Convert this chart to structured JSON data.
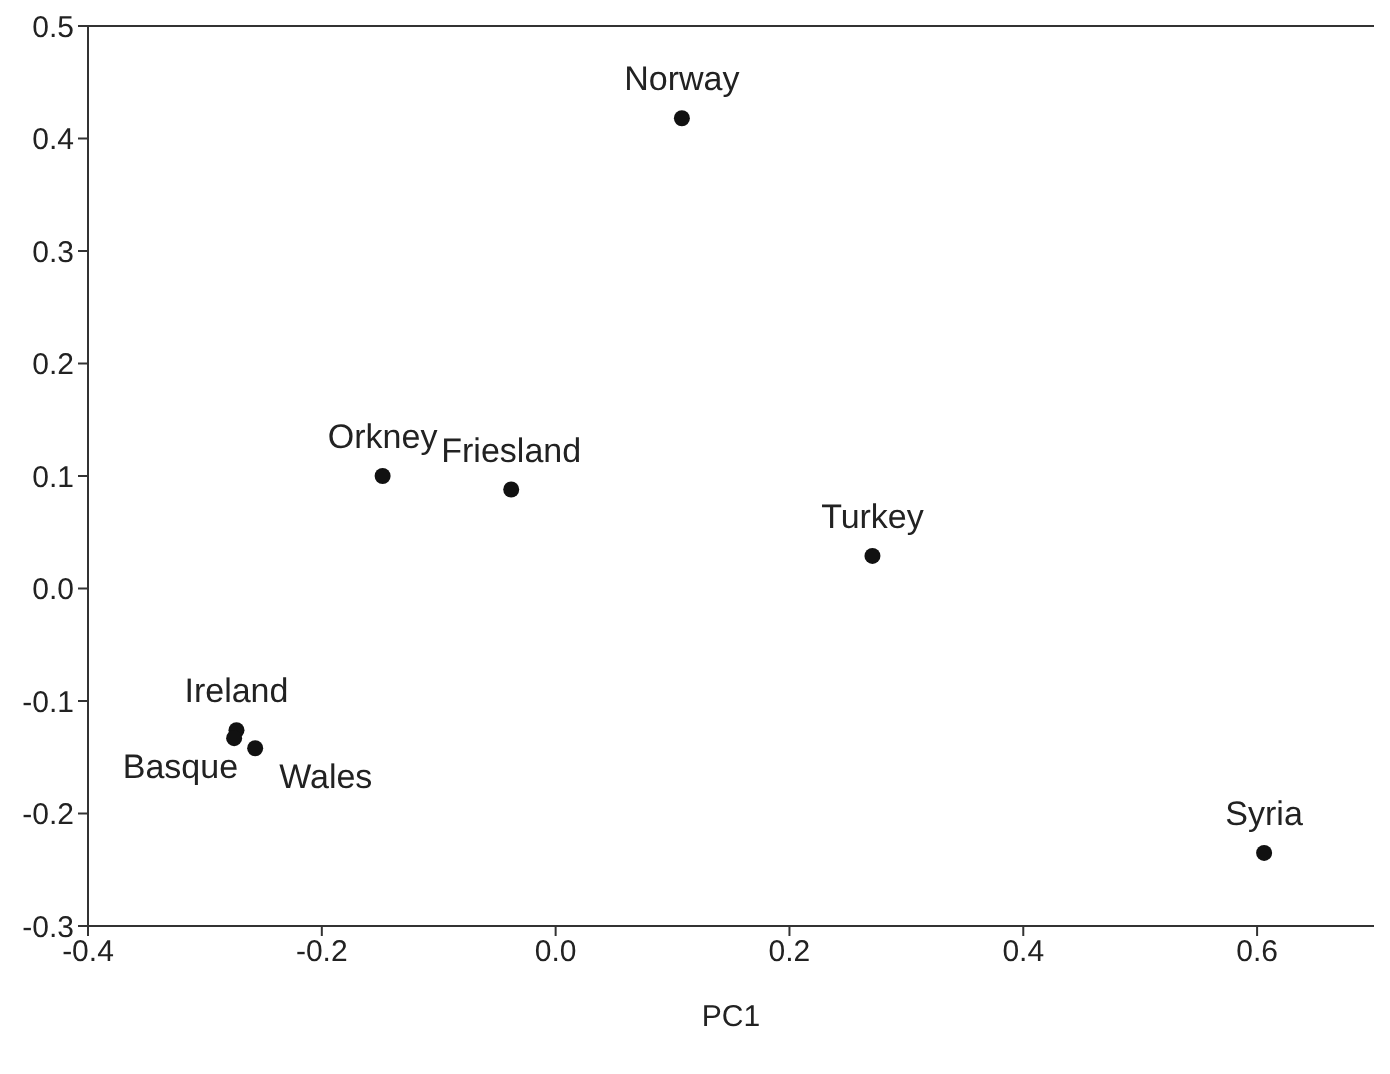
{
  "chart_data": {
    "type": "scatter",
    "xlabel": "PC1",
    "x": [
      0.108,
      -0.148,
      -0.038,
      0.271,
      0.606,
      -0.273,
      -0.275,
      -0.257
    ],
    "values": [
      0.418,
      0.1,
      0.088,
      0.029,
      -0.235,
      -0.126,
      -0.133,
      -0.142
    ],
    "color": "#111111",
    "marker": "circle",
    "annotations": [
      {
        "text": "Norway",
        "x": 0.108,
        "y": 0.418
      },
      {
        "text": "Orkney",
        "x": -0.148,
        "y": 0.1
      },
      {
        "text": "Friesland",
        "x": -0.038,
        "y": 0.088
      },
      {
        "text": "Turkey",
        "x": 0.271,
        "y": 0.029
      },
      {
        "text": "Syria",
        "x": 0.606,
        "y": -0.235
      },
      {
        "text": "Ireland",
        "x": -0.273,
        "y": -0.126
      },
      {
        "text": "Basque",
        "x": -0.275,
        "y": -0.133
      },
      {
        "text": "Wales",
        "x": -0.257,
        "y": -0.142
      }
    ],
    "xlim": [
      -0.4,
      0.7
    ],
    "xticks": [
      {
        "value": -0.4,
        "label": "-0.4"
      },
      {
        "value": -0.2,
        "label": "-0.2"
      },
      {
        "value": 0,
        "label": "0.0"
      },
      {
        "value": 0.2,
        "label": "0.2"
      },
      {
        "value": 0.4,
        "label": "0.4"
      },
      {
        "value": 0.6,
        "label": "0.6"
      }
    ],
    "ylim": [
      -0.3,
      0.5
    ],
    "yticks": [
      {
        "value": -0.3,
        "label": "-0.3"
      },
      {
        "value": -0.2,
        "label": "-0.2"
      },
      {
        "value": -0.1,
        "label": "-0.1"
      },
      {
        "value": 0,
        "label": "0.0"
      },
      {
        "value": 0.1,
        "label": "0.1"
      },
      {
        "value": 0.2,
        "label": "0.2"
      },
      {
        "value": 0.3,
        "label": "0.3"
      },
      {
        "value": 0.4,
        "label": "0.4"
      },
      {
        "value": 0.5,
        "label": "0.5"
      }
    ],
    "grid": false,
    "legend": false
  }
}
